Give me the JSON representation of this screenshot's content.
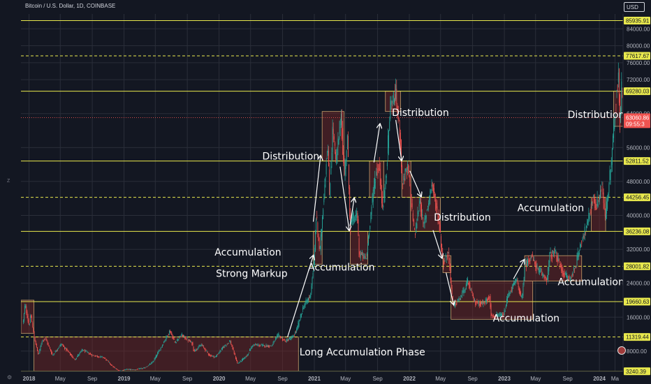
{
  "header": {
    "symbol_title": "Bitcoin / U.S. Dollar, 1D, COINBASE",
    "currency": "USD"
  },
  "icons": {
    "left_tool": "Z",
    "bottom_tool": "⚙"
  },
  "colors": {
    "background": "#131722",
    "grid": "#2a2e39",
    "level_line": "#e8e84d",
    "candle_up": "#26a69a",
    "candle_down": "#ef5350",
    "box_fill": "rgba(120,40,40,0.45)",
    "box_border": "#c9a06c",
    "arrow": "#ffffff",
    "price_badge": "#ef5350"
  },
  "chart_data": {
    "type": "candlestick",
    "title": "Bitcoin / U.S. Dollar, 1D, COINBASE",
    "ylabel": "USD",
    "y_scale": "linear",
    "ylim": [
      3200,
      87500
    ],
    "x_range": [
      "2017-12",
      "2024-04"
    ],
    "x_ticks": [
      {
        "date": "2018-01",
        "label": "2018",
        "bold": true
      },
      {
        "date": "2018-05",
        "label": "May"
      },
      {
        "date": "2018-09",
        "label": "Sep"
      },
      {
        "date": "2019-01",
        "label": "2019",
        "bold": true
      },
      {
        "date": "2019-05",
        "label": "May"
      },
      {
        "date": "2019-09",
        "label": "Sep"
      },
      {
        "date": "2020-01",
        "label": "2020",
        "bold": true
      },
      {
        "date": "2020-05",
        "label": "May"
      },
      {
        "date": "2020-09",
        "label": "Sep"
      },
      {
        "date": "2021-01",
        "label": "2021",
        "bold": true
      },
      {
        "date": "2021-05",
        "label": "May"
      },
      {
        "date": "2021-09",
        "label": "Sep"
      },
      {
        "date": "2022-01",
        "label": "2022",
        "bold": true
      },
      {
        "date": "2022-05",
        "label": "May"
      },
      {
        "date": "2022-09",
        "label": "Sep"
      },
      {
        "date": "2023-01",
        "label": "2023",
        "bold": true
      },
      {
        "date": "2023-05",
        "label": "May"
      },
      {
        "date": "2023-09",
        "label": "Sep"
      },
      {
        "date": "2024-01",
        "label": "2024",
        "bold": true
      },
      {
        "date": "2024-03",
        "label": "Ma"
      }
    ],
    "y_ticks": [
      84000,
      80000,
      76000,
      72000,
      64000,
      56000,
      48000,
      40000,
      32000,
      24000,
      16000,
      8000
    ],
    "y_tick_labels": [
      "84000.00",
      "80000.00",
      "76000.00",
      "72000.00",
      "64000.00",
      "56000.00",
      "48000.00",
      "40000.00",
      "32000.00",
      "24000.00",
      "16000.00",
      "8000.00"
    ],
    "levels": [
      {
        "value": 85935.91,
        "label": "85935.91",
        "style": "solid"
      },
      {
        "value": 77617.67,
        "label": "77617.67",
        "style": "dashed"
      },
      {
        "value": 69280.03,
        "label": "69280.03",
        "style": "solid"
      },
      {
        "value": 52811.52,
        "label": "52811.52",
        "style": "solid"
      },
      {
        "value": 44256.45,
        "label": "44256.45",
        "style": "dashed"
      },
      {
        "value": 36236.08,
        "label": "36236.08",
        "style": "solid"
      },
      {
        "value": 28001.82,
        "label": "28001.82",
        "style": "dashed"
      },
      {
        "value": 19660.63,
        "label": "19660.63",
        "style": "solid"
      },
      {
        "value": 11319.44,
        "label": "11319.44",
        "style": "dashed"
      },
      {
        "value": 3240.39,
        "label": "3240.39",
        "style": "solid"
      }
    ],
    "last_price": {
      "value": 63060.86,
      "label": "63060.86",
      "sub_label": "09:55:3"
    },
    "price_path": [
      [
        "2017-12-10",
        15000
      ],
      [
        "2017-12-17",
        19000
      ],
      [
        "2018-01-01",
        14000
      ],
      [
        "2018-01-08",
        16500
      ],
      [
        "2018-01-20",
        11500
      ],
      [
        "2018-02-06",
        7000
      ],
      [
        "2018-02-20",
        10500
      ],
      [
        "2018-03-05",
        11000
      ],
      [
        "2018-04-01",
        7000
      ],
      [
        "2018-05-05",
        9700
      ],
      [
        "2018-06-25",
        6000
      ],
      [
        "2018-07-25",
        8300
      ],
      [
        "2018-09-01",
        7000
      ],
      [
        "2018-10-15",
        6500
      ],
      [
        "2018-11-25",
        4000
      ],
      [
        "2018-12-15",
        3300
      ],
      [
        "2019-01-10",
        3700
      ],
      [
        "2019-02-10",
        3600
      ],
      [
        "2019-03-20",
        4000
      ],
      [
        "2019-04-20",
        5300
      ],
      [
        "2019-05-15",
        8000
      ],
      [
        "2019-06-26",
        12800
      ],
      [
        "2019-07-15",
        10000
      ],
      [
        "2019-08-10",
        11800
      ],
      [
        "2019-09-20",
        9800
      ],
      [
        "2019-09-26",
        8000
      ],
      [
        "2019-10-26",
        9500
      ],
      [
        "2019-11-25",
        7000
      ],
      [
        "2019-12-18",
        6600
      ],
      [
        "2020-01-15",
        8800
      ],
      [
        "2020-02-12",
        10400
      ],
      [
        "2020-03-12",
        5000
      ],
      [
        "2020-04-15",
        6800
      ],
      [
        "2020-05-10",
        9500
      ],
      [
        "2020-06-15",
        9300
      ],
      [
        "2020-07-20",
        9200
      ],
      [
        "2020-08-15",
        11800
      ],
      [
        "2020-09-10",
        10300
      ],
      [
        "2020-10-10",
        11300
      ],
      [
        "2020-10-25",
        13000
      ],
      [
        "2020-11-20",
        18500
      ],
      [
        "2020-12-16",
        21000
      ],
      [
        "2020-12-31",
        29000
      ],
      [
        "2021-01-08",
        40000
      ],
      [
        "2021-01-22",
        31000
      ],
      [
        "2021-02-08",
        46000
      ],
      [
        "2021-02-21",
        57000
      ],
      [
        "2021-02-28",
        45000
      ],
      [
        "2021-03-13",
        61000
      ],
      [
        "2021-03-25",
        52000
      ],
      [
        "2021-04-14",
        64000
      ],
      [
        "2021-04-25",
        49000
      ],
      [
        "2021-05-08",
        58000
      ],
      [
        "2021-05-19",
        37000
      ],
      [
        "2021-05-25",
        39000
      ],
      [
        "2021-06-15",
        40000
      ],
      [
        "2021-06-22",
        31000
      ],
      [
        "2021-07-20",
        29800
      ],
      [
        "2021-08-05",
        40000
      ],
      [
        "2021-08-22",
        49000
      ],
      [
        "2021-09-06",
        52000
      ],
      [
        "2021-09-21",
        41000
      ],
      [
        "2021-10-05",
        51000
      ],
      [
        "2021-10-20",
        66000
      ],
      [
        "2021-11-10",
        68500
      ],
      [
        "2021-11-28",
        57000
      ],
      [
        "2021-12-04",
        48000
      ],
      [
        "2021-12-27",
        51000
      ],
      [
        "2022-01-22",
        35000
      ],
      [
        "2022-02-10",
        44000
      ],
      [
        "2022-02-24",
        37000
      ],
      [
        "2022-03-28",
        47500
      ],
      [
        "2022-04-25",
        38500
      ],
      [
        "2022-05-10",
        29000
      ],
      [
        "2022-05-31",
        31000
      ],
      [
        "2022-06-18",
        18500
      ],
      [
        "2022-07-15",
        20500
      ],
      [
        "2022-08-14",
        24300
      ],
      [
        "2022-09-08",
        19500
      ],
      [
        "2022-10-15",
        19200
      ],
      [
        "2022-11-05",
        21000
      ],
      [
        "2022-11-12",
        16000
      ],
      [
        "2022-12-30",
        16500
      ],
      [
        "2023-01-14",
        21000
      ],
      [
        "2023-02-16",
        24800
      ],
      [
        "2023-03-10",
        20000
      ],
      [
        "2023-03-20",
        28000
      ],
      [
        "2023-04-14",
        30500
      ],
      [
        "2023-05-10",
        27000
      ],
      [
        "2023-06-15",
        25000
      ],
      [
        "2023-06-23",
        30500
      ],
      [
        "2023-07-15",
        31000
      ],
      [
        "2023-08-17",
        26000
      ],
      [
        "2023-09-11",
        25000
      ],
      [
        "2023-10-01",
        28000
      ],
      [
        "2023-10-23",
        34000
      ],
      [
        "2023-11-15",
        37500
      ],
      [
        "2023-12-06",
        44000
      ],
      [
        "2023-12-20",
        42000
      ],
      [
        "2024-01-11",
        47000
      ],
      [
        "2024-01-23",
        39000
      ],
      [
        "2024-02-15",
        52000
      ],
      [
        "2024-02-28",
        62000
      ],
      [
        "2024-03-05",
        68000
      ],
      [
        "2024-03-14",
        73500
      ],
      [
        "2024-03-20",
        61500
      ],
      [
        "2024-03-27",
        71000
      ],
      [
        "2024-04-01",
        69000
      ],
      [
        "2024-04-10",
        63060
      ]
    ],
    "zones": [
      {
        "name": "zone-2018-top",
        "x0": "2017-12-01",
        "x1": "2018-01-20",
        "y0": 12200,
        "y1": 20000
      },
      {
        "name": "zone-long-accumulation",
        "x0": "2018-01-20",
        "x1": "2020-11-01",
        "y0": 3240,
        "y1": 11319
      },
      {
        "name": "zone-accumulation-2021a",
        "x0": "2020-12-28",
        "x1": "2021-01-31",
        "y0": 28500,
        "y1": 36236
      },
      {
        "name": "zone-distribution-2021a",
        "x0": "2021-01-31",
        "x1": "2021-04-25",
        "y0": 52811,
        "y1": 64500
      },
      {
        "name": "zone-accumulation-2021b",
        "x0": "2021-05-19",
        "x1": "2021-07-25",
        "y0": 28500,
        "y1": 36236
      },
      {
        "name": "zone-reaccumulation-2021",
        "x0": "2021-08-01",
        "x1": "2021-09-25",
        "y0": 44256,
        "y1": 52811
      },
      {
        "name": "zone-distribution-2021b",
        "x0": "2021-10-01",
        "x1": "2021-11-28",
        "y0": 64500,
        "y1": 69280
      },
      {
        "name": "zone-distribution-2021c",
        "x0": "2021-12-03",
        "x1": "2022-01-07",
        "y0": 44256,
        "y1": 52811
      },
      {
        "name": "zone-distribution-2022",
        "x0": "2022-01-05",
        "x1": "2022-04-30",
        "y0": 36236,
        "y1": 44256
      },
      {
        "name": "zone-breakdown-2022",
        "x0": "2022-05-10",
        "x1": "2022-06-10",
        "y0": 26500,
        "y1": 30500
      },
      {
        "name": "zone-accumulation-2022",
        "x0": "2022-06-10",
        "x1": "2023-04-20",
        "y0": 15500,
        "y1": 24500
      },
      {
        "name": "zone-accumulation-2023",
        "x0": "2023-03-20",
        "x1": "2023-10-25",
        "y0": 24500,
        "y1": 30500
      },
      {
        "name": "zone-accumulation-2024",
        "x0": "2023-12-01",
        "x1": "2024-01-25",
        "y0": 36236,
        "y1": 44256
      },
      {
        "name": "zone-distribution-2024",
        "x0": "2024-02-25",
        "x1": "2024-04-12",
        "y0": 61000,
        "y1": 69280
      }
    ],
    "annotations": [
      {
        "text": "Long Accumulation Phase",
        "x": "2020-11-05",
        "y": 7000
      },
      {
        "text": "Strong Markup",
        "x": "2019-12-20",
        "y": 25500
      },
      {
        "text": "Accumulation",
        "x": "2019-12-15",
        "y": 30500
      },
      {
        "text": "Distribution",
        "x": "2020-06-15",
        "y": 53200
      },
      {
        "text": "Accumulation",
        "x": "2020-12-08",
        "y": 27000
      },
      {
        "text": "Distribution",
        "x": "2021-10-26",
        "y": 63500
      },
      {
        "text": "Distribution",
        "x": "2022-04-05",
        "y": 38800
      },
      {
        "text": "Accumulation",
        "x": "2022-11-18",
        "y": 15000
      },
      {
        "text": "Accumulation",
        "x": "2023-07-25",
        "y": 23500
      },
      {
        "text": "Accumulation",
        "x": "2023-02-20",
        "y": 41000
      },
      {
        "text": "Distribution?",
        "x": "2023-09-01",
        "y": 63000
      }
    ],
    "arrows": [
      {
        "from": [
          "2020-09-20",
          11300
        ],
        "to": [
          "2020-12-28",
          30500
        ]
      },
      {
        "from": [
          "2020-12-28",
          38500
        ],
        "to": [
          "2021-01-25",
          54000
        ]
      },
      {
        "from": [
          "2021-04-10",
          51500
        ],
        "to": [
          "2021-05-15",
          36500
        ]
      },
      {
        "from": [
          "2021-05-18",
          37500
        ],
        "to": [
          "2021-06-03",
          44000
        ]
      },
      {
        "from": [
          "2021-08-18",
          52500
        ],
        "to": [
          "2021-09-10",
          61500
        ]
      },
      {
        "from": [
          "2021-11-10",
          62500
        ],
        "to": [
          "2021-12-02",
          53000
        ]
      },
      {
        "from": [
          "2022-01-03",
          50500
        ],
        "to": [
          "2022-02-15",
          44500
        ]
      },
      {
        "from": [
          "2022-04-02",
          36500
        ],
        "to": [
          "2022-05-06",
          30000
        ]
      },
      {
        "from": [
          "2022-05-22",
          26500
        ],
        "to": [
          "2022-06-20",
          19000
        ]
      },
      {
        "from": [
          "2023-02-05",
          25000
        ],
        "to": [
          "2023-03-18",
          29500
        ]
      }
    ]
  }
}
